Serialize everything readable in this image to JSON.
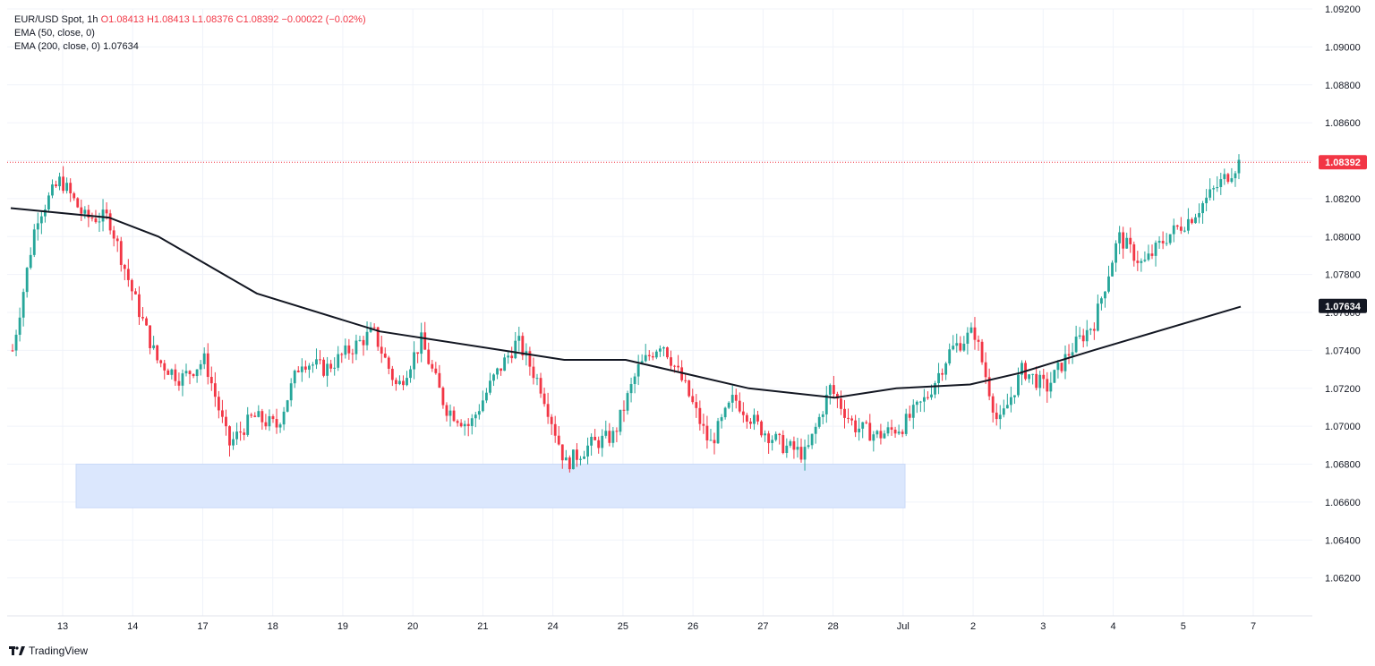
{
  "legend": {
    "symbol": "EUR/USD Spot, 1h",
    "ohlc": "O1.08413  H1.08413  L1.08376  C1.08392  −0.00022 (−0.02%)",
    "ema50": "EMA (50, close, 0)",
    "ema200": "EMA (200, close, 0)",
    "ema200_value": "1.07634"
  },
  "brand": "TradingView",
  "colors": {
    "up": "#26a69a",
    "down": "#f23645",
    "ema": "#131722",
    "zone": "#dbe7fd",
    "grid": "#f0f3fa"
  },
  "price_tags": {
    "last": "1.08392",
    "ema200": "1.07634"
  },
  "chart_data": {
    "type": "candlestick",
    "title": "EUR/USD Spot, 1h",
    "ylim": [
      1.06,
      1.092
    ],
    "yticks": [
      "1.09200",
      "1.09000",
      "1.08800",
      "1.08600",
      "1.08400",
      "1.08200",
      "1.08000",
      "1.07800",
      "1.07600",
      "1.07400",
      "1.07200",
      "1.07000",
      "1.06800",
      "1.06600",
      "1.06400",
      "1.06200"
    ],
    "x_labels": [
      "13",
      "14",
      "17",
      "18",
      "19",
      "20",
      "21",
      "24",
      "25",
      "26",
      "27",
      "28",
      "Jul",
      "2",
      "3",
      "4",
      "5",
      "7"
    ],
    "session_closes": [
      1.074,
      1.081,
      1.083,
      1.081,
      1.081,
      1.077,
      1.0735,
      1.0725,
      1.0735,
      1.069,
      1.0705,
      1.07,
      1.0735,
      1.073,
      1.074,
      1.075,
      1.072,
      1.0745,
      1.071,
      1.07,
      1.0725,
      1.0745,
      1.072,
      1.068,
      1.069,
      1.0695,
      1.073,
      1.0745,
      1.072,
      1.069,
      1.0715,
      1.07,
      1.069,
      1.0685,
      1.072,
      1.07,
      1.0695,
      1.07,
      1.0715,
      1.074,
      1.075,
      1.07,
      1.073,
      1.072,
      1.074,
      1.0755,
      1.08,
      1.0785,
      1.08,
      1.081,
      1.0825,
      1.0839
    ],
    "ema_200": [
      [
        1.0815,
        0.0
      ],
      [
        1.081,
        0.08
      ],
      [
        1.08,
        0.12
      ],
      [
        1.077,
        0.2
      ],
      [
        1.075,
        0.3
      ],
      [
        1.074,
        0.4
      ],
      [
        1.0735,
        0.45
      ],
      [
        1.0735,
        0.5
      ],
      [
        1.072,
        0.6
      ],
      [
        1.0715,
        0.67
      ],
      [
        1.072,
        0.72
      ],
      [
        1.0722,
        0.78
      ],
      [
        1.0728,
        0.82
      ],
      [
        1.074,
        0.88
      ],
      [
        1.0763,
        1.0
      ]
    ],
    "support_zone": [
      1.0657,
      1.068
    ],
    "last_price": 1.08392,
    "ema200_last": 1.07634
  }
}
